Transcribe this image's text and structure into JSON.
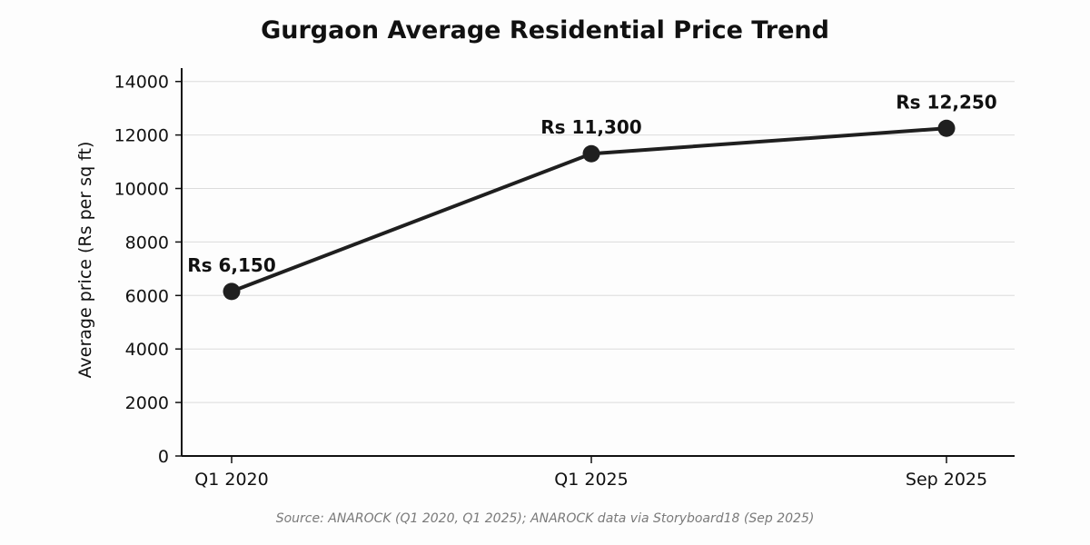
{
  "chart_data": {
    "type": "line",
    "title": "Gurgaon Average Residential Price Trend",
    "ylabel": "Average price (Rs per sq ft)",
    "xlabel": "",
    "categories": [
      "Q1 2020",
      "Q1 2025",
      "Sep 2025"
    ],
    "series": [
      {
        "values": [
          6150,
          11300,
          12250
        ],
        "color": "#1f1f1f"
      }
    ],
    "data_labels": [
      "Rs 6,150",
      "Rs 11,300",
      "Rs 12,250"
    ],
    "ylim": [
      0,
      14500
    ],
    "yticks": [
      0,
      2000,
      4000,
      6000,
      8000,
      10000,
      12000,
      14000
    ],
    "grid": "horizontal",
    "source": "Source: ANAROCK (Q1 2020, Q1 2025); ANAROCK data via Storyboard18 (Sep 2025)"
  }
}
